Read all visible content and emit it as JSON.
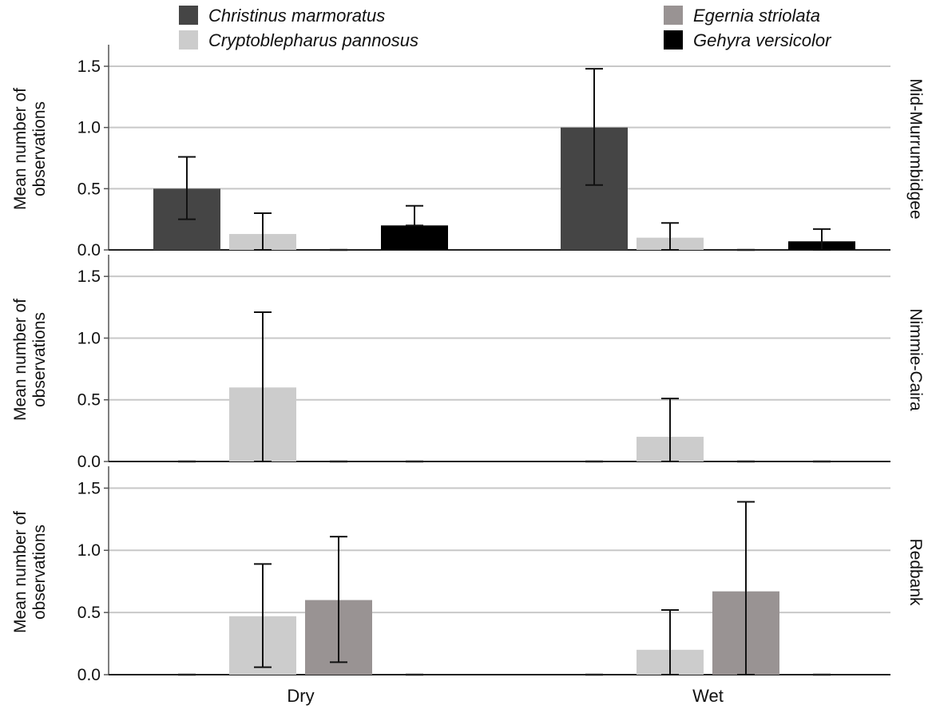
{
  "chart_data": {
    "type": "bar",
    "categories": [
      "Dry",
      "Wet"
    ],
    "series": [
      {
        "name": "Christinus marmoratus",
        "color": "#454545"
      },
      {
        "name": "Cryptoblepharus pannosus",
        "color": "#cccccc"
      },
      {
        "name": "Egernia striolata",
        "color": "#999393"
      },
      {
        "name": "Gehyra versicolor",
        "color": "#000000"
      }
    ],
    "ylabel": "Mean number of observations",
    "ylim": [
      0,
      1.65
    ],
    "yticks": [
      "0.0",
      "0.5",
      "1.0",
      "1.5"
    ],
    "grid": true,
    "legend_position": "top",
    "panels": [
      {
        "label": "Mid-Murrumbidgee",
        "values": [
          [
            0.5,
            0.13,
            0.0,
            0.2
          ],
          [
            1.0,
            0.1,
            0.0,
            0.07
          ]
        ],
        "error_upper": [
          [
            0.76,
            0.3,
            0.0,
            0.36
          ],
          [
            1.48,
            0.22,
            0.0,
            0.17
          ]
        ],
        "error_lower": [
          [
            0.25,
            0.0,
            0.0,
            0.2
          ],
          [
            0.53,
            0.0,
            0.0,
            0.0
          ]
        ]
      },
      {
        "label": "Nimmie-Caira",
        "values": [
          [
            0.0,
            0.6,
            0.0,
            0.0
          ],
          [
            0.0,
            0.2,
            0.0,
            0.0
          ]
        ],
        "error_upper": [
          [
            0.0,
            1.21,
            0.0,
            0.0
          ],
          [
            0.0,
            0.51,
            0.0,
            0.0
          ]
        ],
        "error_lower": [
          [
            0.0,
            0.0,
            0.0,
            0.0
          ],
          [
            0.0,
            0.0,
            0.0,
            0.0
          ]
        ]
      },
      {
        "label": "Redbank",
        "values": [
          [
            0.0,
            0.47,
            0.6,
            0.0
          ],
          [
            0.0,
            0.2,
            0.67,
            0.0
          ]
        ],
        "error_upper": [
          [
            0.0,
            0.89,
            1.11,
            0.0
          ],
          [
            0.0,
            0.52,
            1.39,
            0.0
          ]
        ],
        "error_lower": [
          [
            0.0,
            0.06,
            0.1,
            0.0
          ],
          [
            0.0,
            0.0,
            0.0,
            0.0
          ]
        ]
      }
    ]
  }
}
